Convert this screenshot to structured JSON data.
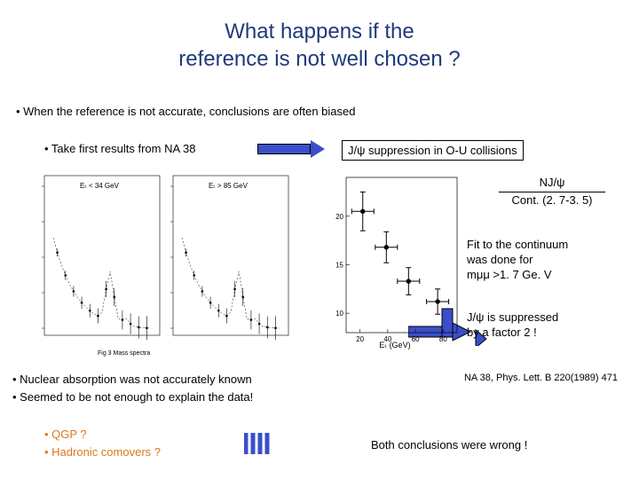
{
  "title_line1": "What happens if the",
  "title_line2": "reference is not well chosen ?",
  "bullet1": "• When the reference is not accurate, conclusions are often biased",
  "bullet2": "• Take first results from NA 38",
  "bullet3": "J/ψ suppression in O-U collisions",
  "ratio_num": "NJ/ψ",
  "ratio_den": "Cont. (2. 7-3. 5)",
  "fit_l1": "Fit to the continuum",
  "fit_l2": "was done for",
  "fit_l3": "mμμ >1. 7 Ge. V",
  "suppressed_l1": "J/ψ is suppressed",
  "suppressed_l2": "by a factor 2 !",
  "bottom_b1": "• Nuclear absorption was not accurately known",
  "bottom_b2": "• Seemed to be not enough to explain the data!",
  "citation": "NA 38, Phys. Lett. B 220(1989) 471",
  "sub_b1": "• QGP ?",
  "sub_b2": "• Hadronic comovers ?",
  "conclusion": "Both conclusions were wrong !",
  "arrow_color": "#3a4fc9",
  "orange": "#d87a1a",
  "left_panel_label1": "Eₜ < 34 GeV",
  "left_panel_label2": "Eₜ > 85 GeV",
  "left_panel_caption": "Fig 3 Mass spectra",
  "right_panel_xlabel": "Eₜ (GeV)",
  "right_data": {
    "x": [
      22,
      39,
      55,
      76
    ],
    "y": [
      20.5,
      16.8,
      13.3,
      11.2
    ],
    "yerr": [
      2.0,
      1.6,
      1.4,
      1.3
    ],
    "xerr": [
      8,
      8,
      8,
      8
    ],
    "xlim": [
      10,
      90
    ],
    "ylim": [
      8,
      24
    ],
    "xticks": [
      20,
      40,
      60,
      80
    ],
    "yticks": [
      10,
      15,
      20
    ]
  }
}
